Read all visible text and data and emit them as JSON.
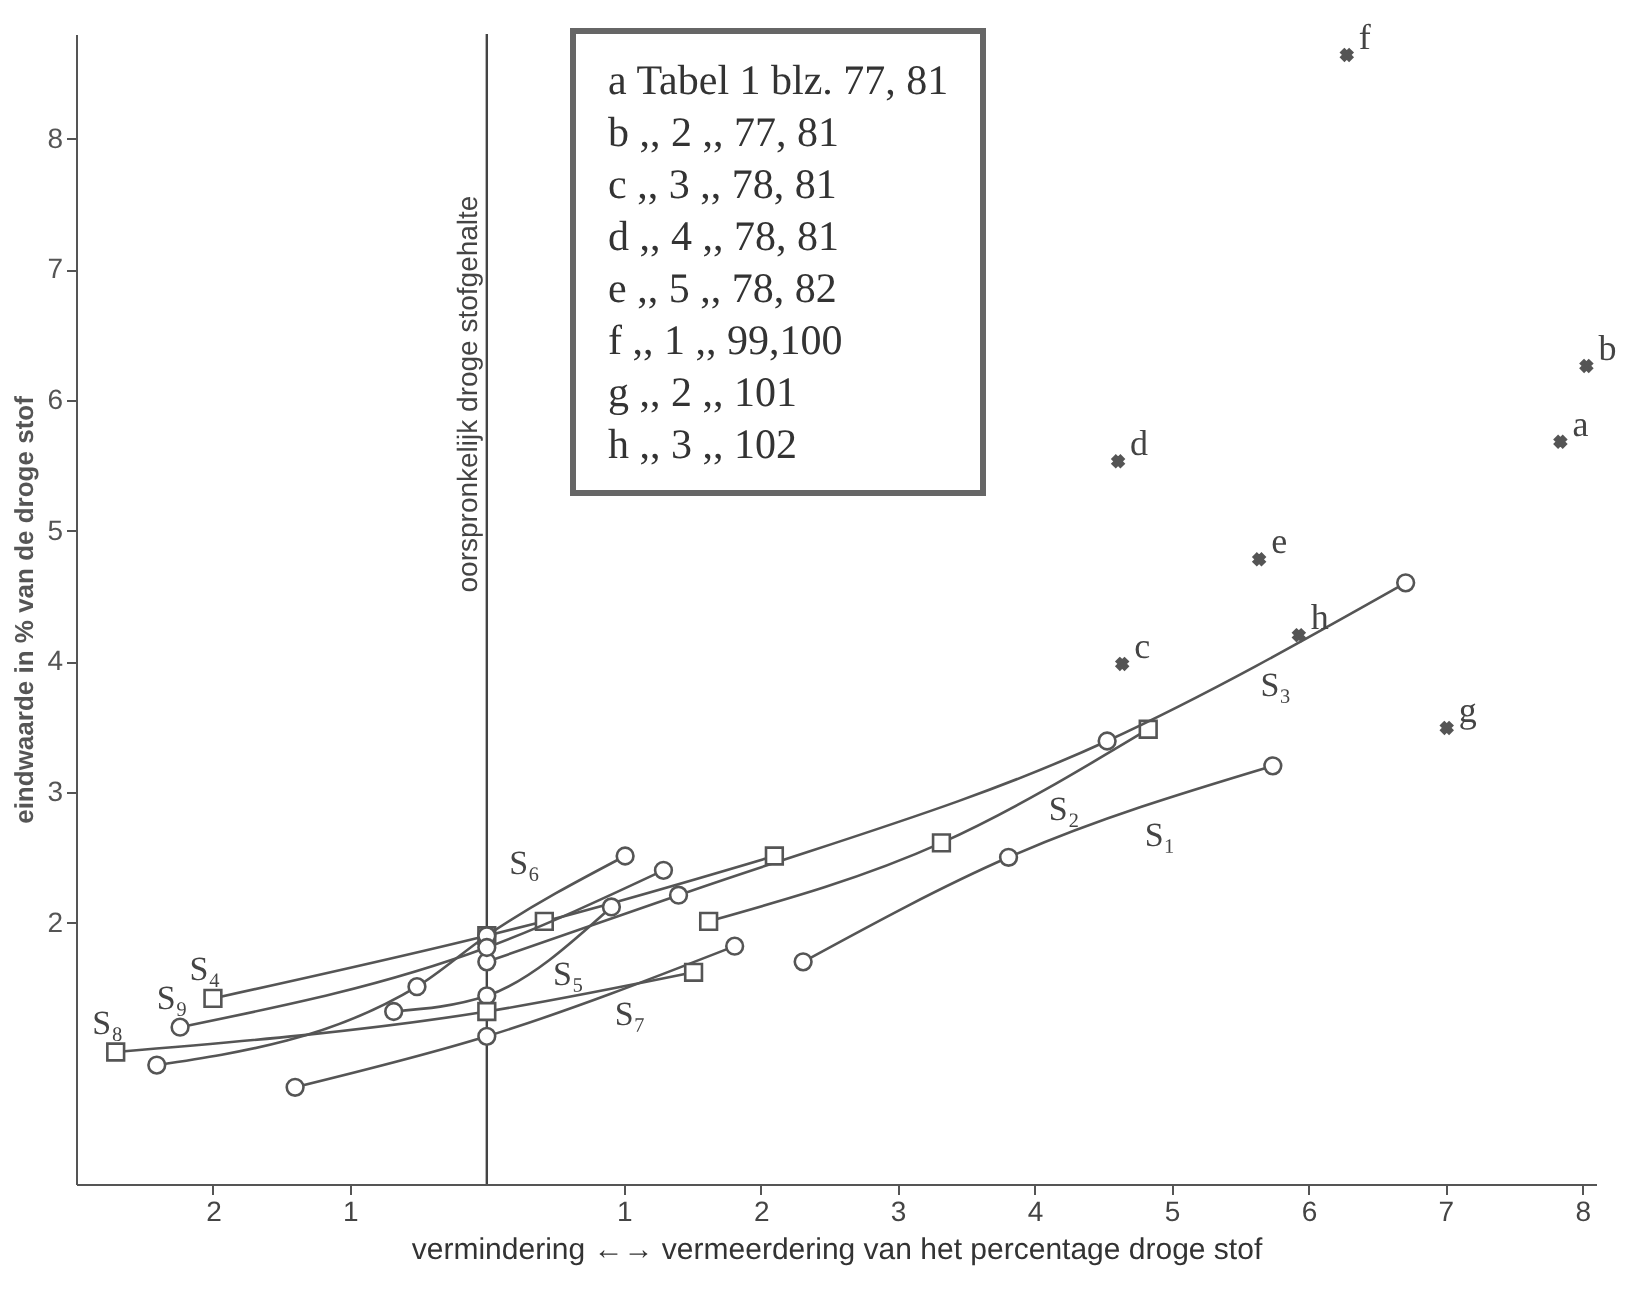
{
  "chart_data": {
    "type": "line",
    "xlabel": "vermindering ←→ vermeerdering van het percentage droge stof",
    "ylabel": "eindwaarde in % van de droge stof",
    "xlim": [
      -3,
      8.1
    ],
    "ylim": [
      0,
      8.8
    ],
    "xticks": [
      {
        "value": -2,
        "label": "2"
      },
      {
        "value": -1,
        "label": "1"
      },
      1,
      2,
      3,
      4,
      5,
      6,
      7,
      8
    ],
    "yticks": [
      2,
      3,
      4,
      5,
      6,
      7,
      8
    ],
    "ref_lines": [
      {
        "axis": "x",
        "value": 0,
        "label": "oorspronkelijk droge stofgehalte",
        "color": "#444444"
      }
    ],
    "annotations": [
      "a Tabel 1 blz. 77, 81",
      "b ,, 2 ,, 77, 81",
      "c ,, 3 ,, 78, 81",
      "d ,, 4 ,, 78, 81",
      "e ,, 5 ,, 78, 82",
      "f ,, 1 ,, 99,100",
      "g ,, 2 ,, 101",
      "h ,, 3 ,, 102",
      {
        "text": "a",
        "x": 7.84,
        "y": 5.68
      },
      {
        "text": "b",
        "x": 8.03,
        "y": 6.26
      },
      {
        "text": "c",
        "x": 4.64,
        "y": 3.98
      },
      {
        "text": "d",
        "x": 4.61,
        "y": 5.53
      },
      {
        "text": "e",
        "x": 5.64,
        "y": 4.78
      },
      {
        "text": "f",
        "x": 6.28,
        "y": 8.64
      },
      {
        "text": "g",
        "x": 7.01,
        "y": 3.49
      },
      {
        "text": "h",
        "x": 5.93,
        "y": 4.2
      }
    ],
    "series": [
      {
        "name": "S₁",
        "type": "line",
        "marker": "circle",
        "color": "#555555",
        "x": [
          2.31,
          3.81,
          5.74
        ],
        "values": [
          1.7,
          2.5,
          3.2
        ]
      },
      {
        "name": "S₂",
        "type": "line",
        "marker": "square",
        "color": "#555555",
        "x": [
          1.62,
          3.32,
          4.83
        ],
        "values": [
          2.01,
          2.61,
          3.48
        ]
      },
      {
        "name": "S₃",
        "type": "line",
        "marker": "circle",
        "color": "#555555",
        "x": [
          0,
          1.4,
          4.53,
          6.71
        ],
        "values": [
          1.7,
          2.21,
          3.39,
          4.6
        ]
      },
      {
        "name": "S₄",
        "type": "line",
        "marker": "square",
        "color": "#555555",
        "x": [
          -2,
          0,
          0.42,
          2.1
        ],
        "values": [
          1.42,
          1.9,
          2.01,
          2.51
        ]
      },
      {
        "name": "S₅",
        "type": "line",
        "marker": "circle",
        "color": "#555555",
        "x": [
          -0.68,
          0,
          0.91
        ],
        "values": [
          1.32,
          1.44,
          2.12
        ]
      },
      {
        "name": "S₆",
        "type": "line",
        "marker": "circle",
        "color": "#555555",
        "x": [
          -2.41,
          -0.51,
          0,
          1.01
        ],
        "values": [
          0.91,
          1.51,
          1.9,
          2.51
        ]
      },
      {
        "name": "S₇",
        "type": "line",
        "marker": "circle",
        "color": "#555555",
        "x": [
          -1.4,
          0,
          1.81
        ],
        "values": [
          0.74,
          1.13,
          1.82
        ]
      },
      {
        "name": "S₈",
        "type": "line",
        "marker": "square",
        "color": "#555555",
        "x": [
          -2.71,
          0,
          1.51
        ],
        "values": [
          1.01,
          1.32,
          1.62
        ]
      },
      {
        "name": "S₉",
        "type": "line",
        "marker": "circle",
        "color": "#555555",
        "x": [
          -2.24,
          0,
          1.29
        ],
        "values": [
          1.2,
          1.81,
          2.4
        ]
      },
      {
        "type": "scatter",
        "marker": "cross",
        "color": "#555555",
        "x": [
          7.84,
          8.03,
          4.64,
          4.61,
          5.64,
          6.28,
          7.01,
          5.93
        ],
        "values": [
          5.68,
          6.26,
          3.98,
          5.53,
          4.78,
          8.64,
          3.49,
          4.2
        ]
      }
    ]
  }
}
